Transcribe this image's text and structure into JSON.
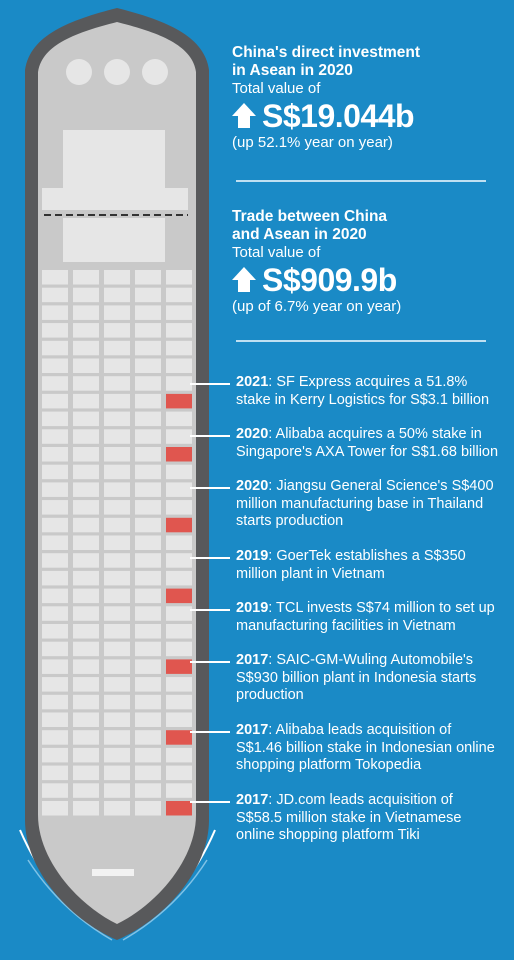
{
  "stats": [
    {
      "title_line1": "China's direct investment",
      "title_line2": "in Asean in 2020",
      "subtitle": "Total value of",
      "value": "S$19.044b",
      "change": "(up 52.1% year on year)"
    },
    {
      "title_line1": "Trade between China",
      "title_line2": "and Asean in 2020",
      "subtitle": "Total value of",
      "value": "S$909.9b",
      "change": "(up of 6.7% year on year)"
    }
  ],
  "events": [
    {
      "year": "2021",
      "lines": [
        ": SF Express acquires a 51.8%",
        "stake in Kerry Logistics for S$3.1 billion"
      ]
    },
    {
      "year": "2020",
      "lines": [
        ": Alibaba acquires a 50% stake in",
        "Singapore's AXA Tower for S$1.68 billion"
      ]
    },
    {
      "year": "2020",
      "lines": [
        ": Jiangsu General Science's S$400",
        "million manufacturing base in Thailand",
        "starts production"
      ]
    },
    {
      "year": "2019",
      "lines": [
        ": GoerTek establishes a S$350",
        "million plant in Vietnam"
      ]
    },
    {
      "year": "2019",
      "lines": [
        ": TCL invests S$74 million to set up",
        "manufacturing facilities in Vietnam"
      ]
    },
    {
      "year": "2017",
      "lines": [
        ": SAIC-GM-Wuling Automobile's",
        "S$930 billion plant in Indonesia starts",
        "production"
      ]
    },
    {
      "year": "2017",
      "lines": [
        ": Alibaba leads acquisition of",
        "S$1.46 billion stake in Indonesian online",
        "shopping platform Tokopedia"
      ]
    },
    {
      "year": "2017",
      "lines": [
        ": JD.com leads acquisition of",
        "S$58.5 million stake in Vietnamese",
        "online shopping platform Tiki"
      ]
    }
  ],
  "colors": {
    "background": "#1a8ac6",
    "hull": "#58595b",
    "deck": "#c9c9c9",
    "container": "#e6e6e6",
    "highlight_container": "#e0564f"
  }
}
